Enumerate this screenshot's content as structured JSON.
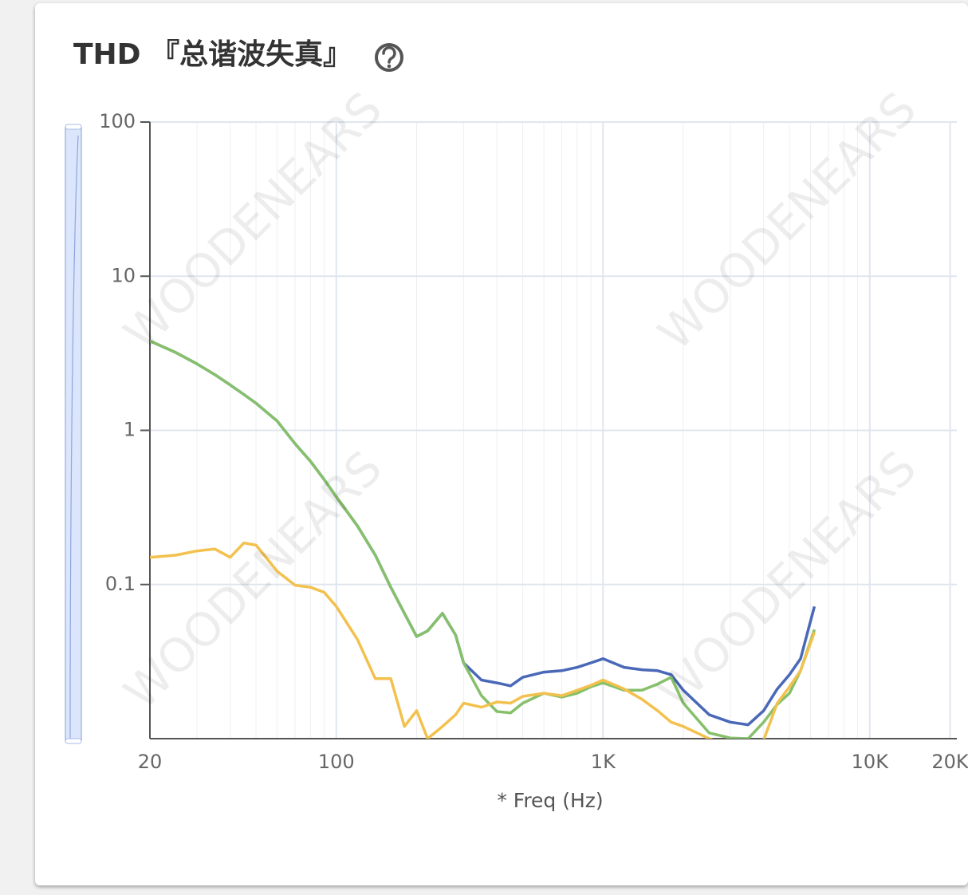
{
  "chart_data": {
    "type": "line",
    "title": "THD 『总谐波失真』",
    "x_label": "* Freq (Hz)",
    "watermark": "WOODENEARS",
    "xscale": "log",
    "yscale": "log",
    "grid": true,
    "xlim": [
      20,
      20000
    ],
    "ylim": [
      0.01,
      100
    ],
    "xticks": [
      20,
      100,
      {
        "value": 1000,
        "label": "1K"
      },
      {
        "value": 10000,
        "label": "10K"
      },
      {
        "value": 20000,
        "label": "20K"
      }
    ],
    "yticks": [
      100,
      10,
      1,
      0.1
    ],
    "x": [
      20,
      25,
      30,
      35,
      40,
      45,
      50,
      60,
      70,
      80,
      90,
      100,
      120,
      140,
      160,
      180,
      200,
      220,
      250,
      280,
      300,
      350,
      400,
      450,
      500,
      600,
      700,
      800,
      900,
      1000,
      1200,
      1400,
      1600,
      1800,
      2000,
      2500,
      3000,
      3500,
      4000,
      4500,
      5000,
      5500,
      6200
    ],
    "series": [
      {
        "color": "#4a68b8",
        "values": [
          3.8,
          3.2,
          2.7,
          2.3,
          1.97,
          1.71,
          1.5,
          1.15,
          0.82,
          0.63,
          0.48,
          0.37,
          0.24,
          0.155,
          0.096,
          0.065,
          0.046,
          0.05,
          0.065,
          0.047,
          0.031,
          0.024,
          0.023,
          0.022,
          0.025,
          0.027,
          0.0276,
          0.029,
          0.031,
          0.033,
          0.029,
          0.028,
          0.0276,
          0.026,
          0.0206,
          0.0143,
          0.0128,
          0.0123,
          0.0152,
          0.021,
          0.026,
          0.033,
          0.072
        ]
      },
      {
        "color": "#86c06a",
        "values": [
          3.8,
          3.2,
          2.7,
          2.3,
          1.97,
          1.71,
          1.5,
          1.15,
          0.82,
          0.63,
          0.48,
          0.37,
          0.24,
          0.155,
          0.096,
          0.065,
          0.046,
          0.05,
          0.065,
          0.047,
          0.031,
          0.019,
          0.015,
          0.0147,
          0.017,
          0.0197,
          0.0186,
          0.0197,
          0.0217,
          0.023,
          0.0206,
          0.0206,
          0.0226,
          0.025,
          0.017,
          0.0109,
          0.0101,
          0.01,
          0.0128,
          0.0167,
          0.0197,
          0.0276,
          0.051
        ]
      },
      {
        "color": "#f2c14e",
        "values": [
          0.15,
          0.155,
          0.165,
          0.17,
          0.15,
          0.186,
          0.18,
          0.122,
          0.099,
          0.096,
          0.089,
          0.072,
          0.044,
          0.0245,
          0.0245,
          0.012,
          0.0152,
          0.01,
          0.012,
          0.0143,
          0.017,
          0.016,
          0.0173,
          0.017,
          0.0188,
          0.0197,
          0.019,
          0.0206,
          0.0222,
          0.024,
          0.021,
          0.018,
          0.0152,
          0.0128,
          0.012,
          0.01,
          0.009,
          0.008,
          0.0098,
          0.017,
          0.0217,
          0.0276,
          0.049
        ]
      }
    ]
  }
}
